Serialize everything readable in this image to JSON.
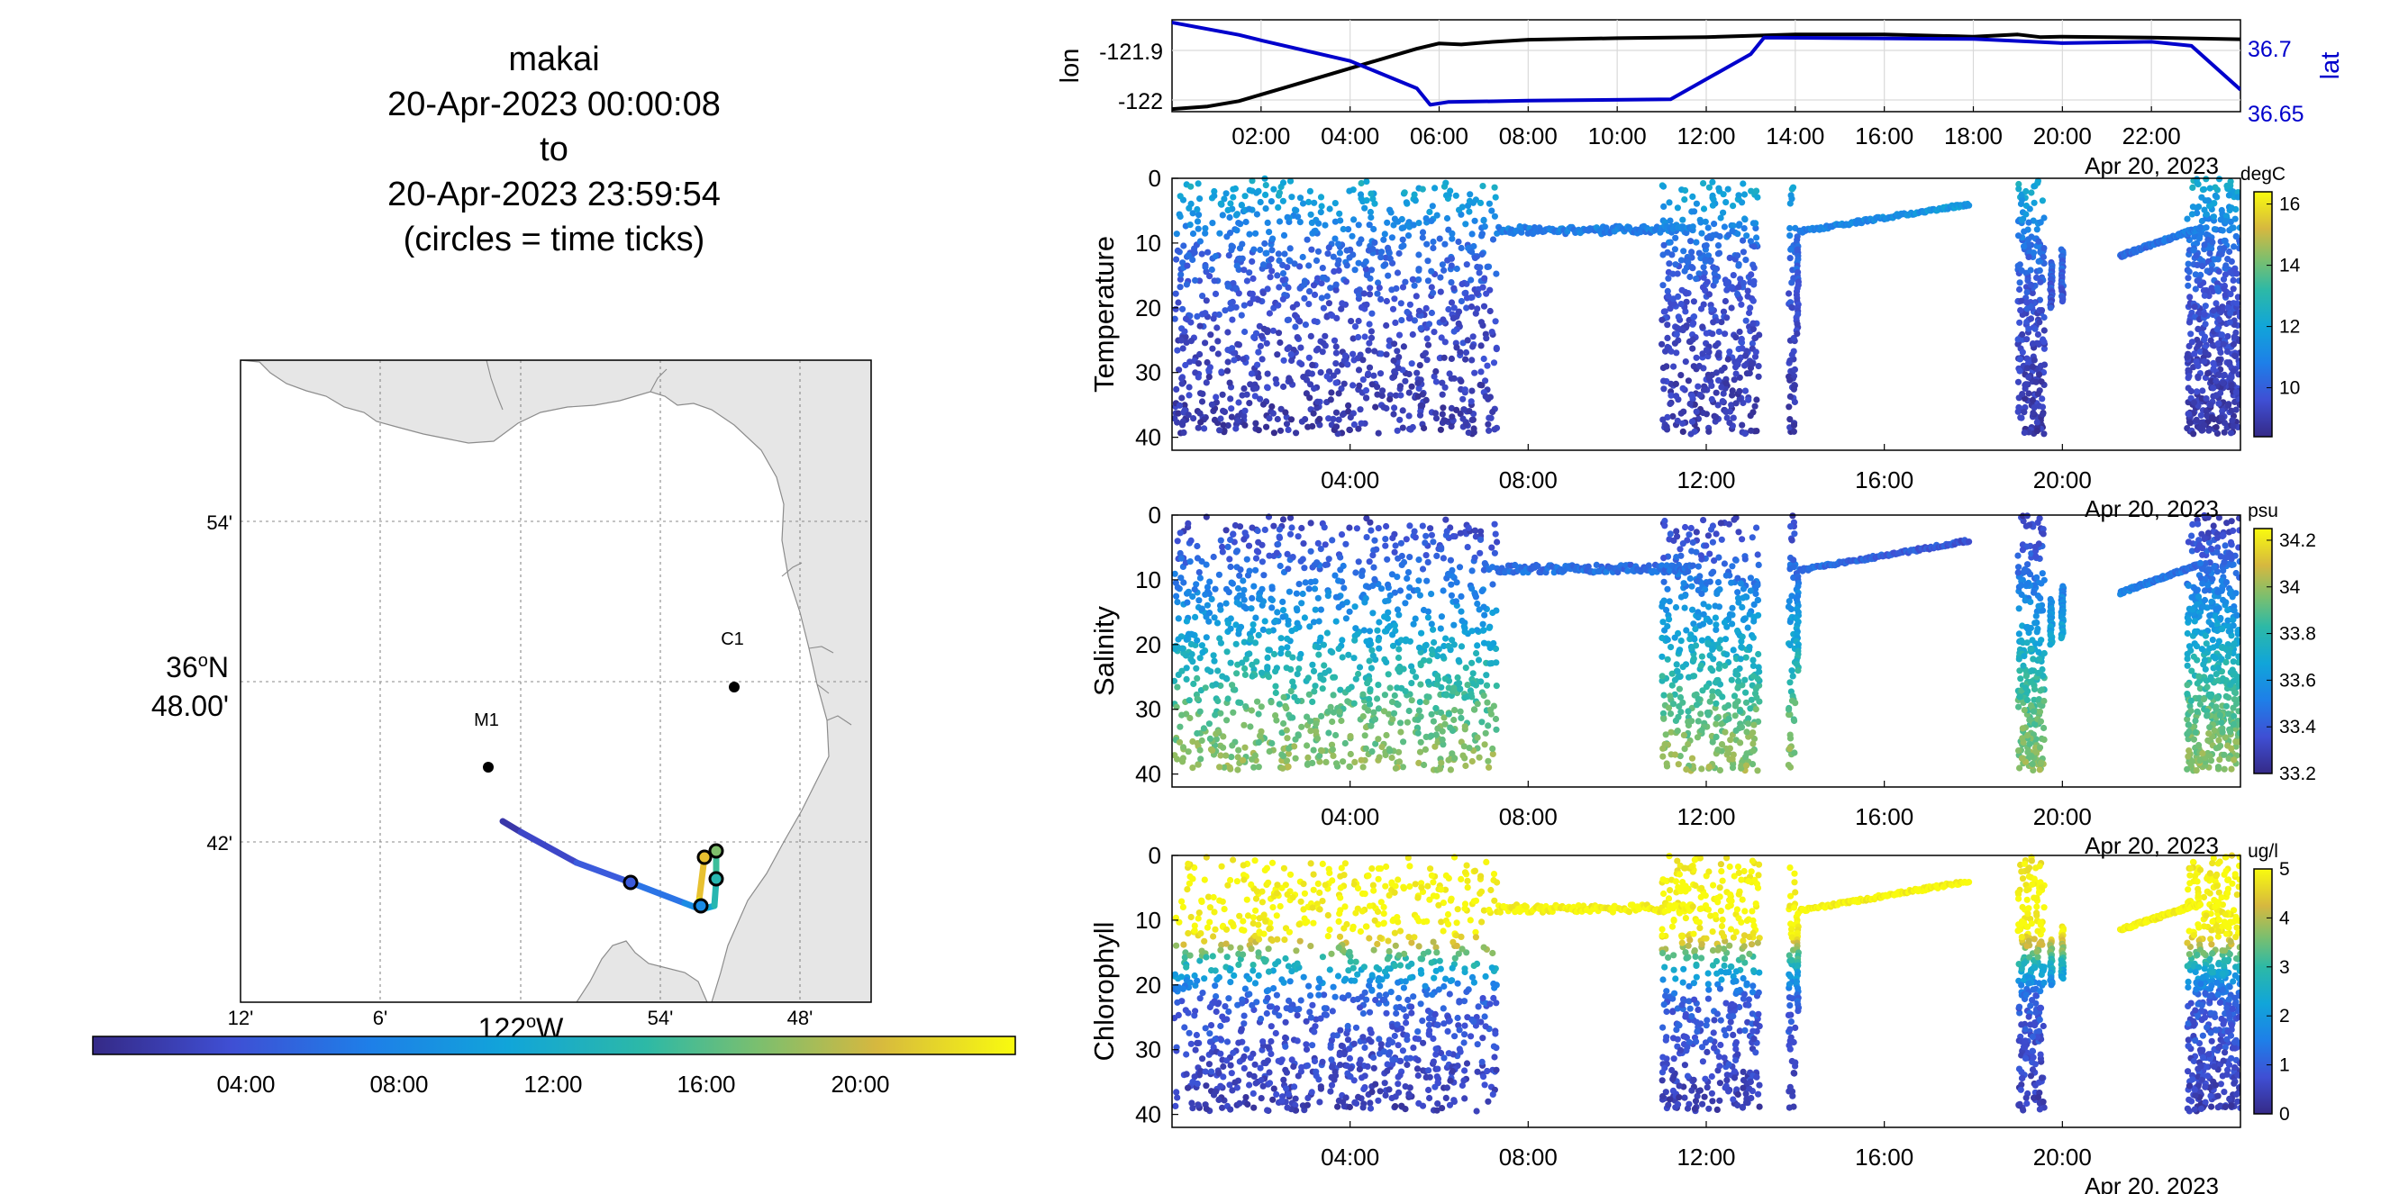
{
  "header": {
    "vehicle": "makai",
    "start": "20-Apr-2023 00:00:08",
    "to_word": "to",
    "end": "20-Apr-2023 23:59:54",
    "note": "(circles = time ticks)"
  },
  "map": {
    "lat_labels": [
      "54'",
      "36°N 48.00'",
      "42'"
    ],
    "lat_main": "36",
    "lat_suffix": "N",
    "lat_minutes": "48.00'",
    "lon_labels": [
      "12'",
      "6'",
      "54'",
      "48'"
    ],
    "lon_main": "122",
    "lon_suffix": "W",
    "stations": [
      {
        "name": "C1"
      },
      {
        "name": "M1"
      }
    ],
    "colorbar_ticks": [
      "04:00",
      "08:00",
      "12:00",
      "16:00",
      "20:00"
    ],
    "colors": {
      "land": "#e6e6e6",
      "coast": "#8c8c8c"
    }
  },
  "chart_data": [
    {
      "type": "line",
      "title": "",
      "ylabel": "lon",
      "ylabel_right": "lat",
      "x_ticks": [
        "02:00",
        "04:00",
        "06:00",
        "08:00",
        "10:00",
        "12:00",
        "14:00",
        "16:00",
        "18:00",
        "20:00",
        "22:00"
      ],
      "date_label": "Apr 20, 2023",
      "yticks_left": [
        "-121.9",
        "-122"
      ],
      "yticks_right": [
        "36.7",
        "36.65"
      ],
      "xlim_hours": [
        0,
        24
      ],
      "ylim_left": [
        -122.005,
        -121.83
      ],
      "ylim_right": [
        36.648,
        36.715
      ],
      "series": [
        {
          "name": "lon",
          "color": "#000000",
          "axis": "left",
          "x": [
            0,
            0.8,
            1.5,
            2.5,
            3.5,
            4.5,
            5.5,
            6.0,
            6.5,
            7.2,
            8,
            10,
            12,
            14,
            16,
            18,
            19,
            19.5,
            20,
            22,
            24
          ],
          "y": [
            -122,
            -121.995,
            -121.985,
            -121.96,
            -121.935,
            -121.91,
            -121.885,
            -121.875,
            -121.877,
            -121.872,
            -121.868,
            -121.865,
            -121.863,
            -121.858,
            -121.858,
            -121.862,
            -121.858,
            -121.863,
            -121.862,
            -121.864,
            -121.867
          ]
        },
        {
          "name": "lat",
          "color": "#0000cc",
          "axis": "right",
          "x": [
            0,
            1.5,
            2,
            4,
            5.5,
            5.8,
            6.2,
            8,
            11.2,
            13,
            13.3,
            18,
            20,
            22,
            22.9,
            24
          ],
          "y": [
            36.713,
            36.704,
            36.7,
            36.685,
            36.665,
            36.653,
            36.655,
            36.656,
            36.657,
            36.69,
            36.702,
            36.701,
            36.698,
            36.699,
            36.696,
            36.664
          ]
        }
      ]
    },
    {
      "type": "scatter",
      "ylabel": "Temperature",
      "colorbar_unit": "degC",
      "colorbar_ticks": [
        "16",
        "14",
        "12",
        "10"
      ],
      "clim": [
        8.4,
        16.4
      ],
      "x_ticks": [
        "04:00",
        "08:00",
        "12:00",
        "16:00",
        "20:00"
      ],
      "date_label": "Apr 20, 2023",
      "yticks": [
        "0",
        "10",
        "20",
        "30",
        "40"
      ],
      "ylim": [
        0,
        42
      ],
      "xlim_hours": [
        0,
        24
      ],
      "color_by_depth": [
        [
          0,
          12.4
        ],
        [
          5,
          11.5
        ],
        [
          10,
          10.4
        ],
        [
          20,
          9.6
        ],
        [
          30,
          9.2
        ],
        [
          40,
          8.9
        ]
      ]
    },
    {
      "type": "scatter",
      "ylabel": "Salinity",
      "colorbar_unit": "psu",
      "colorbar_ticks": [
        "34.2",
        "34",
        "33.8",
        "33.6",
        "33.4",
        "33.2"
      ],
      "clim": [
        33.2,
        34.25
      ],
      "x_ticks": [
        "04:00",
        "08:00",
        "12:00",
        "16:00",
        "20:00"
      ],
      "date_label": "Apr 20, 2023",
      "yticks": [
        "0",
        "10",
        "20",
        "30",
        "40"
      ],
      "ylim": [
        0,
        42
      ],
      "xlim_hours": [
        0,
        24
      ],
      "color_by_depth": [
        [
          0,
          33.3
        ],
        [
          8,
          33.45
        ],
        [
          15,
          33.6
        ],
        [
          22,
          33.75
        ],
        [
          30,
          33.9
        ],
        [
          40,
          34.0
        ]
      ]
    },
    {
      "type": "scatter",
      "ylabel": "Chlorophyll",
      "colorbar_unit": "ug/l",
      "colorbar_ticks": [
        "5",
        "4",
        "3",
        "2",
        "1",
        "0"
      ],
      "clim": [
        0,
        5
      ],
      "x_ticks": [
        "04:00",
        "08:00",
        "12:00",
        "16:00",
        "20:00"
      ],
      "date_label": "Apr 20, 2023",
      "yticks": [
        "0",
        "10",
        "20",
        "30",
        "40"
      ],
      "ylim": [
        0,
        42
      ],
      "xlim_hours": [
        0,
        24
      ],
      "color_by_depth": [
        [
          0,
          4.8
        ],
        [
          4,
          5
        ],
        [
          12,
          5
        ],
        [
          16,
          3
        ],
        [
          22,
          1
        ],
        [
          40,
          0.4
        ]
      ]
    }
  ]
}
